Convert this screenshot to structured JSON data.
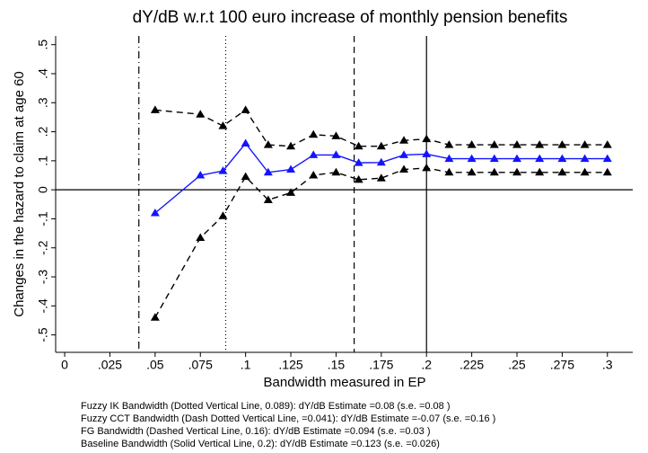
{
  "chart_data": {
    "type": "line",
    "title": "dY/dB w.r.t 100 euro increase of monthly pension benefits",
    "x_label": "Bandwidth measured in EP",
    "y_label": "Changes in the hazard to claim at age 60",
    "x": [
      0.05,
      0.075,
      0.0875,
      0.1,
      0.1125,
      0.125,
      0.1375,
      0.15,
      0.1625,
      0.175,
      0.1875,
      0.2,
      0.2125,
      0.225,
      0.2375,
      0.25,
      0.2625,
      0.275,
      0.2875,
      0.3
    ],
    "series": [
      {
        "color": "#1414ff",
        "dash": "solid",
        "marker": "triangle",
        "values": [
          -0.08,
          0.05,
          0.065,
          0.16,
          0.06,
          0.07,
          0.12,
          0.12,
          0.093,
          0.094,
          0.12,
          0.123,
          0.107,
          0.107,
          0.107,
          0.107,
          0.107,
          0.107,
          0.107,
          0.107
        ]
      },
      {
        "color": "#000000",
        "dash": "dashed",
        "marker": "triangle",
        "values": [
          0.275,
          0.26,
          0.22,
          0.275,
          0.155,
          0.15,
          0.19,
          0.185,
          0.15,
          0.15,
          0.17,
          0.175,
          0.155,
          0.155,
          0.155,
          0.155,
          0.155,
          0.155,
          0.155,
          0.155
        ]
      },
      {
        "color": "#000000",
        "dash": "dashed",
        "marker": "triangle",
        "values": [
          -0.44,
          -0.165,
          -0.09,
          0.045,
          -0.035,
          -0.01,
          0.05,
          0.06,
          0.035,
          0.04,
          0.07,
          0.075,
          0.06,
          0.06,
          0.06,
          0.06,
          0.06,
          0.06,
          0.06,
          0.06
        ]
      }
    ],
    "reference_lines": [
      {
        "axis": "x",
        "value": 0.041,
        "dash": "dashdot"
      },
      {
        "axis": "x",
        "value": 0.089,
        "dash": "dotted"
      },
      {
        "axis": "x",
        "value": 0.16,
        "dash": "dashed"
      },
      {
        "axis": "x",
        "value": 0.2,
        "dash": "solid"
      },
      {
        "axis": "y",
        "value": 0,
        "dash": "solid"
      }
    ],
    "xlim": [
      -0.005,
      0.314
    ],
    "ylim": [
      -0.56,
      0.53
    ],
    "xticks": [
      0,
      {
        "value": 0.025,
        "label": ".025"
      },
      {
        "value": 0.05,
        "label": ".05"
      },
      {
        "value": 0.075,
        "label": ".075"
      },
      {
        "value": 0.1,
        "label": ".1"
      },
      {
        "value": 0.125,
        "label": ".125"
      },
      {
        "value": 0.15,
        "label": ".15"
      },
      {
        "value": 0.175,
        "label": ".175"
      },
      {
        "value": 0.2,
        "label": ".2"
      },
      {
        "value": 0.225,
        "label": ".225"
      },
      {
        "value": 0.25,
        "label": ".25"
      },
      {
        "value": 0.275,
        "label": ".275"
      },
      {
        "value": 0.3,
        "label": ".3"
      }
    ],
    "yticks": [
      {
        "value": -0.5,
        "label": "-.5"
      },
      {
        "value": -0.4,
        "label": "-.4"
      },
      {
        "value": -0.3,
        "label": "-.3"
      },
      {
        "value": -0.2,
        "label": "-.2"
      },
      {
        "value": -0.1,
        "label": "-.1"
      },
      0,
      {
        "value": 0.1,
        "label": ".1"
      },
      {
        "value": 0.2,
        "label": ".2"
      },
      {
        "value": 0.3,
        "label": ".3"
      },
      {
        "value": 0.4,
        "label": ".4"
      },
      {
        "value": 0.5,
        "label": ".5"
      }
    ],
    "notes": [
      "Fuzzy IK Bandwidth (Dotted Vertical Line, 0.089): dY/dB Estimate =0.08 (s.e. =0.08 )",
      "Fuzzy CCT Bandwidth (Dash Dotted Vertical Line, =0.041): dY/dB Estimate =-0.07 (s.e. =0.16 )",
      "FG Bandwidth (Dashed Vertical Line, 0.16): dY/dB Estimate =0.094 (s.e. =0.03 )",
      "Baseline Bandwidth (Solid Vertical Line, 0.2): dY/dB Estimate =0.123 (s.e. =0.026)"
    ]
  }
}
